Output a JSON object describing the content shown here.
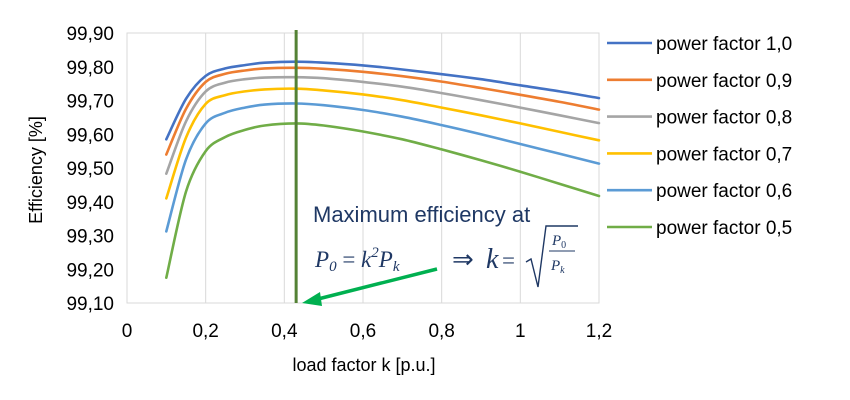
{
  "chart_data": {
    "type": "line",
    "xlabel": "load factor k [p.u.]",
    "ylabel": "Efficiency [%]",
    "xlim": [
      0,
      1.2
    ],
    "ylim": [
      99.1,
      99.9
    ],
    "x_ticks": [
      "0",
      "0,2",
      "0,4",
      "0,6",
      "0,8",
      "1",
      "1,2"
    ],
    "y_ticks": [
      "99,10",
      "99,20",
      "99,30",
      "99,40",
      "99,50",
      "99,60",
      "99,70",
      "99,80",
      "99,90"
    ],
    "grid": "vertical",
    "legend_position": "right",
    "x": [
      0.1,
      0.15,
      0.2,
      0.25,
      0.3,
      0.35,
      0.43,
      0.5,
      0.6,
      0.7,
      0.8,
      0.9,
      1.0,
      1.1,
      1.2
    ],
    "series": [
      {
        "name": "power factor 1,0",
        "color": "#4472c4",
        "values": [
          99.585,
          99.705,
          99.773,
          99.795,
          99.805,
          99.812,
          99.815,
          99.812,
          99.804,
          99.792,
          99.778,
          99.763,
          99.745,
          99.727,
          99.707
        ]
      },
      {
        "name": "power factor 0,9",
        "color": "#ed7d31",
        "values": [
          99.54,
          99.675,
          99.755,
          99.779,
          99.789,
          99.795,
          99.797,
          99.794,
          99.785,
          99.772,
          99.756,
          99.737,
          99.717,
          99.696,
          99.673
        ]
      },
      {
        "name": "power factor 0,8",
        "color": "#a5a5a5",
        "values": [
          99.483,
          99.638,
          99.727,
          99.753,
          99.763,
          99.768,
          99.769,
          99.766,
          99.755,
          99.741,
          99.722,
          99.701,
          99.679,
          99.656,
          99.633
        ]
      },
      {
        "name": "power factor 0,7",
        "color": "#ffc000",
        "values": [
          99.41,
          99.59,
          99.69,
          99.716,
          99.727,
          99.733,
          99.735,
          99.73,
          99.718,
          99.701,
          99.679,
          99.656,
          99.632,
          99.607,
          99.582
        ]
      },
      {
        "name": "power factor 0,6",
        "color": "#5b9bd5",
        "values": [
          99.312,
          99.525,
          99.632,
          99.664,
          99.679,
          99.688,
          99.691,
          99.686,
          99.672,
          99.652,
          99.627,
          99.6,
          99.571,
          99.542,
          99.513
        ]
      },
      {
        "name": "power factor 0,5",
        "color": "#70ad47",
        "values": [
          99.175,
          99.43,
          99.55,
          99.592,
          99.613,
          99.626,
          99.632,
          99.626,
          99.608,
          99.585,
          99.555,
          99.523,
          99.489,
          99.453,
          99.417
        ]
      }
    ],
    "vertical_marker": {
      "x": 0.43,
      "color": "#548235"
    },
    "annotation": {
      "line1": "Maximum efficiency at",
      "P": "P",
      "sub0": "0",
      "eq": " = ",
      "k": "k",
      "sup2": "2",
      "subk": "k",
      "implies": "⇒",
      "eq2": " = ",
      "frac_num_P": "P",
      "frac_num_sub": "0",
      "frac_den_P": "P",
      "frac_den_sub": "k",
      "arrow_color": "#00b050"
    }
  }
}
